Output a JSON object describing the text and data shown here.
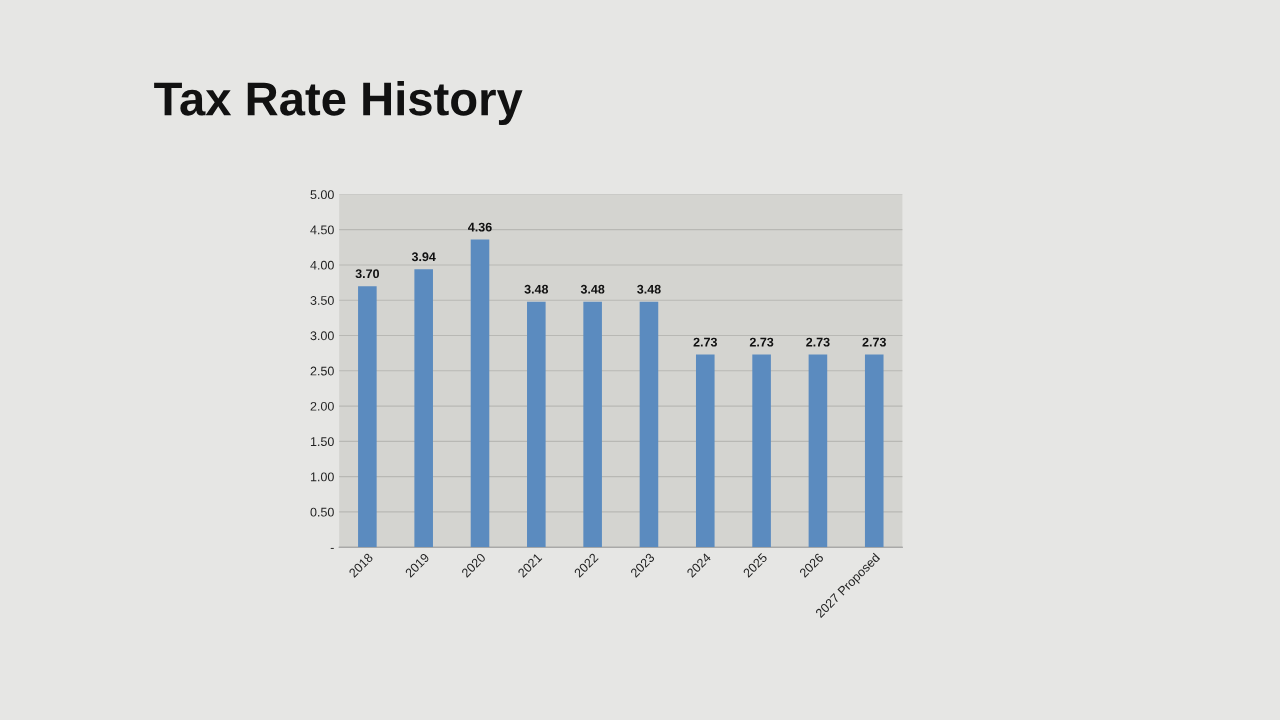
{
  "chart_data": {
    "type": "bar",
    "title": "Tax Rate History",
    "categories": [
      "2018",
      "2019",
      "2020",
      "2021",
      "2022",
      "2023",
      "2024",
      "2025",
      "2026",
      "2027 Proposed"
    ],
    "values": [
      3.7,
      3.94,
      4.36,
      3.48,
      3.48,
      3.48,
      2.73,
      2.73,
      2.73,
      2.73
    ],
    "color": "#5b8bbf",
    "ylim": [
      0,
      5
    ],
    "yticks": [
      {
        "value": 0,
        "label": "-"
      },
      {
        "value": 0.5,
        "label": "0.50"
      },
      {
        "value": 1,
        "label": "1.00"
      },
      {
        "value": 1.5,
        "label": "1.50"
      },
      {
        "value": 2,
        "label": "2.00"
      },
      {
        "value": 2.5,
        "label": "2.50"
      },
      {
        "value": 3,
        "label": "3.00"
      },
      {
        "value": 3.5,
        "label": "3.50"
      },
      {
        "value": 4,
        "label": "4.00"
      },
      {
        "value": 4.5,
        "label": "4.50"
      },
      {
        "value": 5,
        "label": "5.00"
      }
    ],
    "value_labels": [
      "3.70",
      "3.94",
      "4.36",
      "3.48",
      "3.48",
      "3.48",
      "2.73",
      "2.73",
      "2.73",
      "2.73"
    ],
    "grid": "y",
    "legend": false
  }
}
